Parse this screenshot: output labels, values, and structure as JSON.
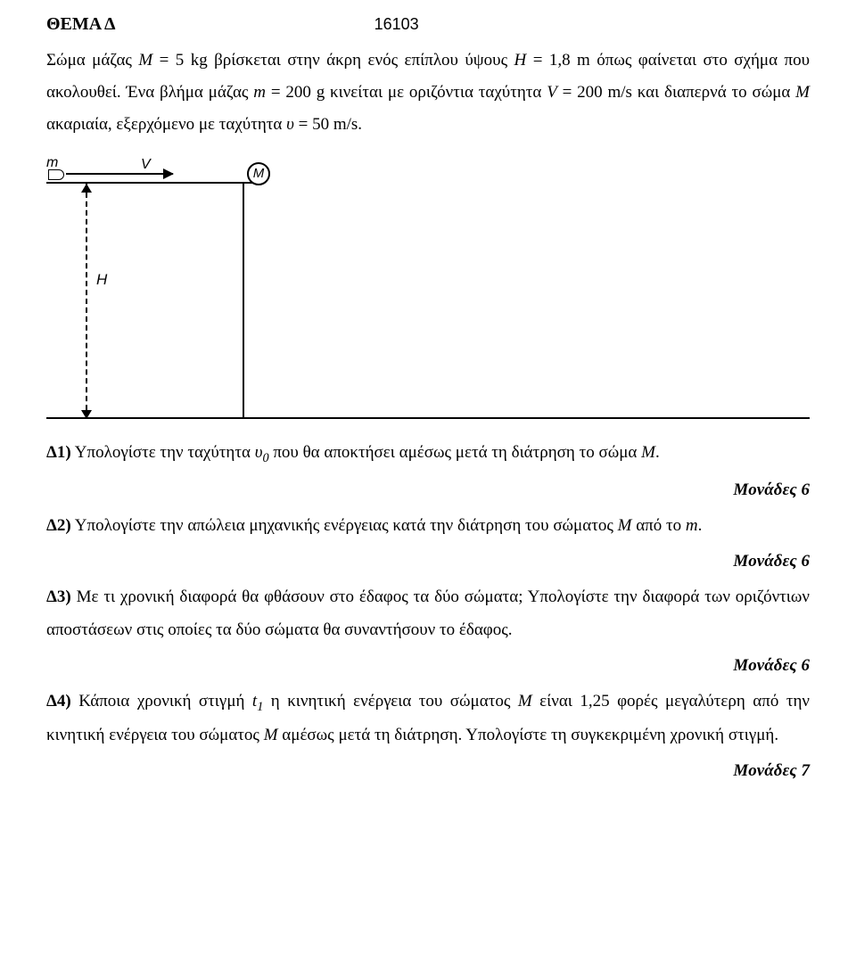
{
  "header": {
    "title": "ΘΕΜΑ Δ",
    "code": "16103"
  },
  "intro": {
    "line1_a": "Σώμα μάζας ",
    "line1_m": "M",
    "line1_b": " = 5 kg  βρίσκεται στην άκρη ενός επίπλου ύψους ",
    "line1_h": "H",
    "line1_c": " = 1,8 m όπως φαίνεται στο σχήμα που ακολουθεί. Ένα βλήμα μάζας ",
    "line1_mm": "m",
    "line1_d": " = 200 g κινείται με οριζόντια ταχύτητα ",
    "line1_v": "V",
    "line1_e": " = 200 m/s και διαπερνά το σώμα ",
    "line1_m2": "Μ",
    "line1_f": " ακαριαία, εξερχόμενο με ταχύτητα ",
    "line1_u": "υ",
    "line1_g": " = 50 m/s."
  },
  "figure": {
    "label_m": "m",
    "label_V": "V",
    "label_M": "M",
    "label_H": "H"
  },
  "questions": {
    "d1": {
      "prefix": "Δ1)",
      "a": " Υπολογίστε την ταχύτητα ",
      "v": "υ",
      "sub": "0",
      "b": " που θα αποκτήσει αμέσως μετά τη διάτρηση το σώμα ",
      "m": "M",
      "c": ".",
      "points": "Μονάδες 6"
    },
    "d2": {
      "prefix": "Δ2)",
      "a": " Υπολογίστε την απώλεια μηχανικής ενέργειας κατά την διάτρηση του σώματος ",
      "m": "M",
      "b": " από το ",
      "mm": "m",
      "c": ".",
      "points": "Μονάδες 6"
    },
    "d3": {
      "prefix": "Δ3)",
      "text": " Με τι χρονική διαφορά θα φθάσουν στο έδαφος τα δύο σώματα; Υπολογίστε την διαφορά των οριζόντιων αποστάσεων στις οποίες τα δύο σώματα θα συναντήσουν το έδαφος.",
      "points": "Μονάδες 6"
    },
    "d4": {
      "prefix": "Δ4)",
      "a": " Κάποια χρονική στιγμή ",
      "t": "t",
      "sub": "1",
      "b": " η κινητική ενέργεια του σώματος ",
      "m1": "M",
      "c": " είναι 1,25 φορές μεγαλύτερη από την κινητική ενέργεια του σώματος ",
      "m2": "M",
      "d": " αμέσως μετά τη διάτρηση. Υπολογίστε τη συγκεκριμένη χρονική στιγμή.",
      "points": "Μονάδες 7"
    }
  }
}
